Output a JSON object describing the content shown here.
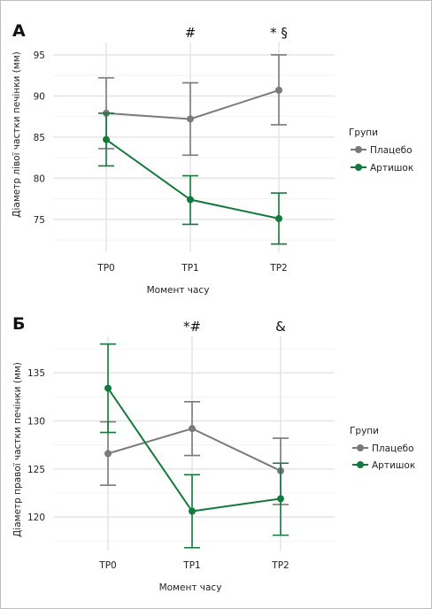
{
  "chart_data": [
    {
      "type": "line",
      "panel_label": "А",
      "categories": [
        "TP0",
        "TP1",
        "TP2"
      ],
      "xlabel": "Момент часу",
      "ylabel": "Діаметр лівої частки печінки (мм)",
      "ylim": [
        71,
        96.5
      ],
      "yticks": [
        75,
        80,
        85,
        90,
        95
      ],
      "grid": true,
      "legend": {
        "title": "Групи",
        "position": "right"
      },
      "series": [
        {
          "name": "Плацебо",
          "color": "#7a7a7a",
          "values": [
            87.9,
            87.2,
            90.7
          ],
          "err_low": [
            83.6,
            82.8,
            86.5
          ],
          "err_high": [
            92.2,
            91.6,
            95.0
          ]
        },
        {
          "name": "Артишок",
          "color": "#137a3c",
          "values": [
            84.7,
            77.4,
            75.1
          ],
          "err_low": [
            81.5,
            74.4,
            72.0
          ],
          "err_high": [
            87.9,
            80.3,
            78.2
          ]
        }
      ],
      "annotations": [
        {
          "category": "TP1",
          "text": "#"
        },
        {
          "category": "TP2",
          "text": "* §"
        }
      ]
    },
    {
      "type": "line",
      "panel_label": "Б",
      "categories": [
        "TP0",
        "TP1",
        "TP2"
      ],
      "xlabel": "Момент часу",
      "ylabel": "Діаметр правої частки печінки (мм)",
      "ylim": [
        116.5,
        138.8
      ],
      "yticks": [
        120,
        125,
        130,
        135
      ],
      "grid": true,
      "legend": {
        "title": "Групи",
        "position": "right"
      },
      "series": [
        {
          "name": "Плацебо",
          "color": "#7a7a7a",
          "values": [
            126.6,
            129.2,
            124.8
          ],
          "err_low": [
            123.3,
            126.4,
            121.3
          ],
          "err_high": [
            129.9,
            132.0,
            128.2
          ]
        },
        {
          "name": "Артишок",
          "color": "#137a3c",
          "values": [
            133.4,
            120.6,
            121.9
          ],
          "err_low": [
            128.8,
            116.8,
            118.1
          ],
          "err_high": [
            138.0,
            124.4,
            125.6
          ]
        }
      ],
      "annotations": [
        {
          "category": "TP1",
          "text": "*#"
        },
        {
          "category": "TP2",
          "text": "&"
        }
      ]
    }
  ]
}
